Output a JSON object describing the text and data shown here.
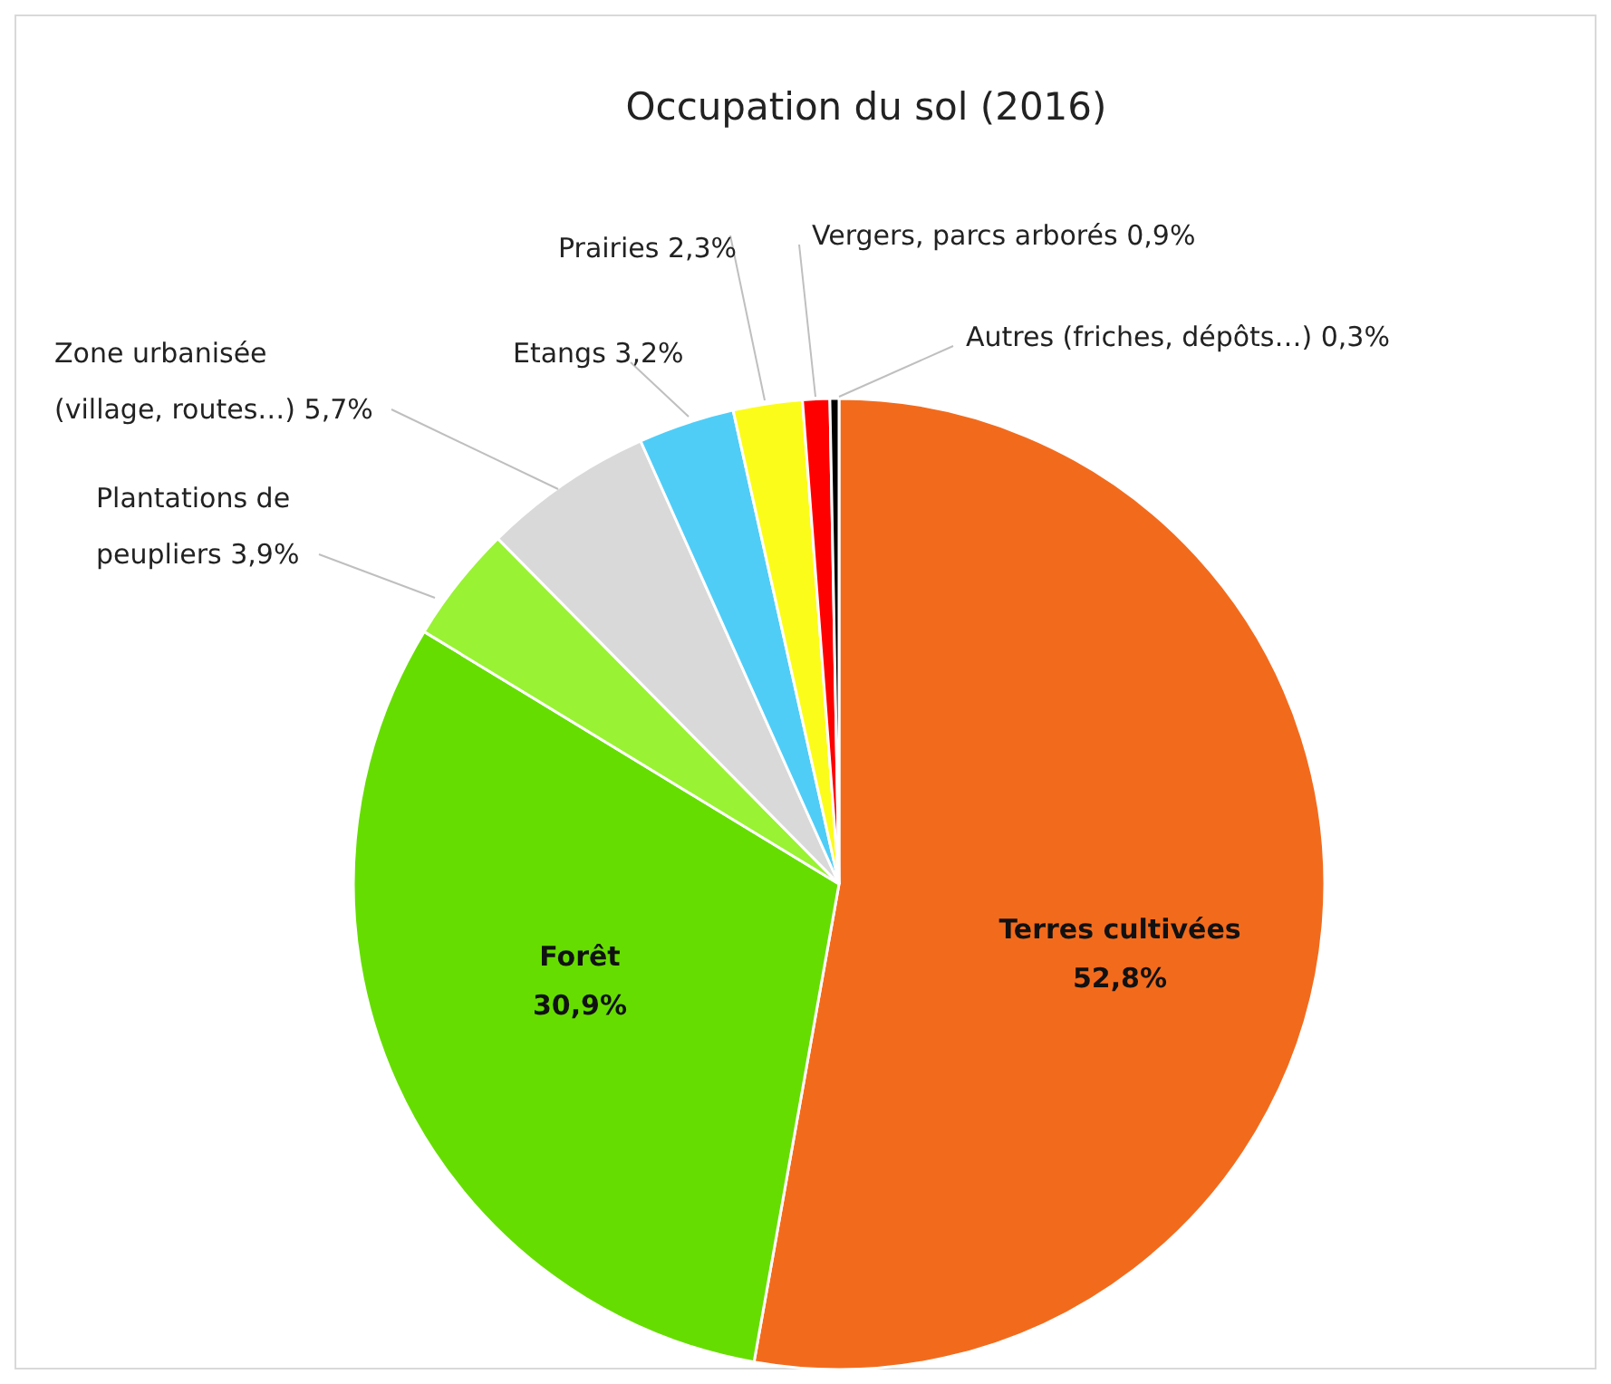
{
  "chart_data": {
    "type": "pie",
    "title": "Occupation du sol (2016)",
    "categories": [
      "Terres cultivées",
      "Forêt",
      "Plantations de peupliers",
      "Zone urbanisée (village, routes…)",
      "Etangs",
      "Prairies",
      "Vergers, parcs arborés",
      "Autres (friches, dépôts…)"
    ],
    "values": [
      52.8,
      30.9,
      3.9,
      5.7,
      3.2,
      2.3,
      0.9,
      0.3
    ],
    "value_labels": [
      "52,8%",
      "30,9%",
      "3,9%",
      "5,7%",
      "3,2%",
      "2,3%",
      "0,9%",
      "0,3%"
    ],
    "colors": [
      "#f26b1d",
      "#66dd00",
      "#99f233",
      "#d9d9d9",
      "#4fcdf7",
      "#fcfc1a",
      "#ff0000",
      "#000000"
    ]
  }
}
